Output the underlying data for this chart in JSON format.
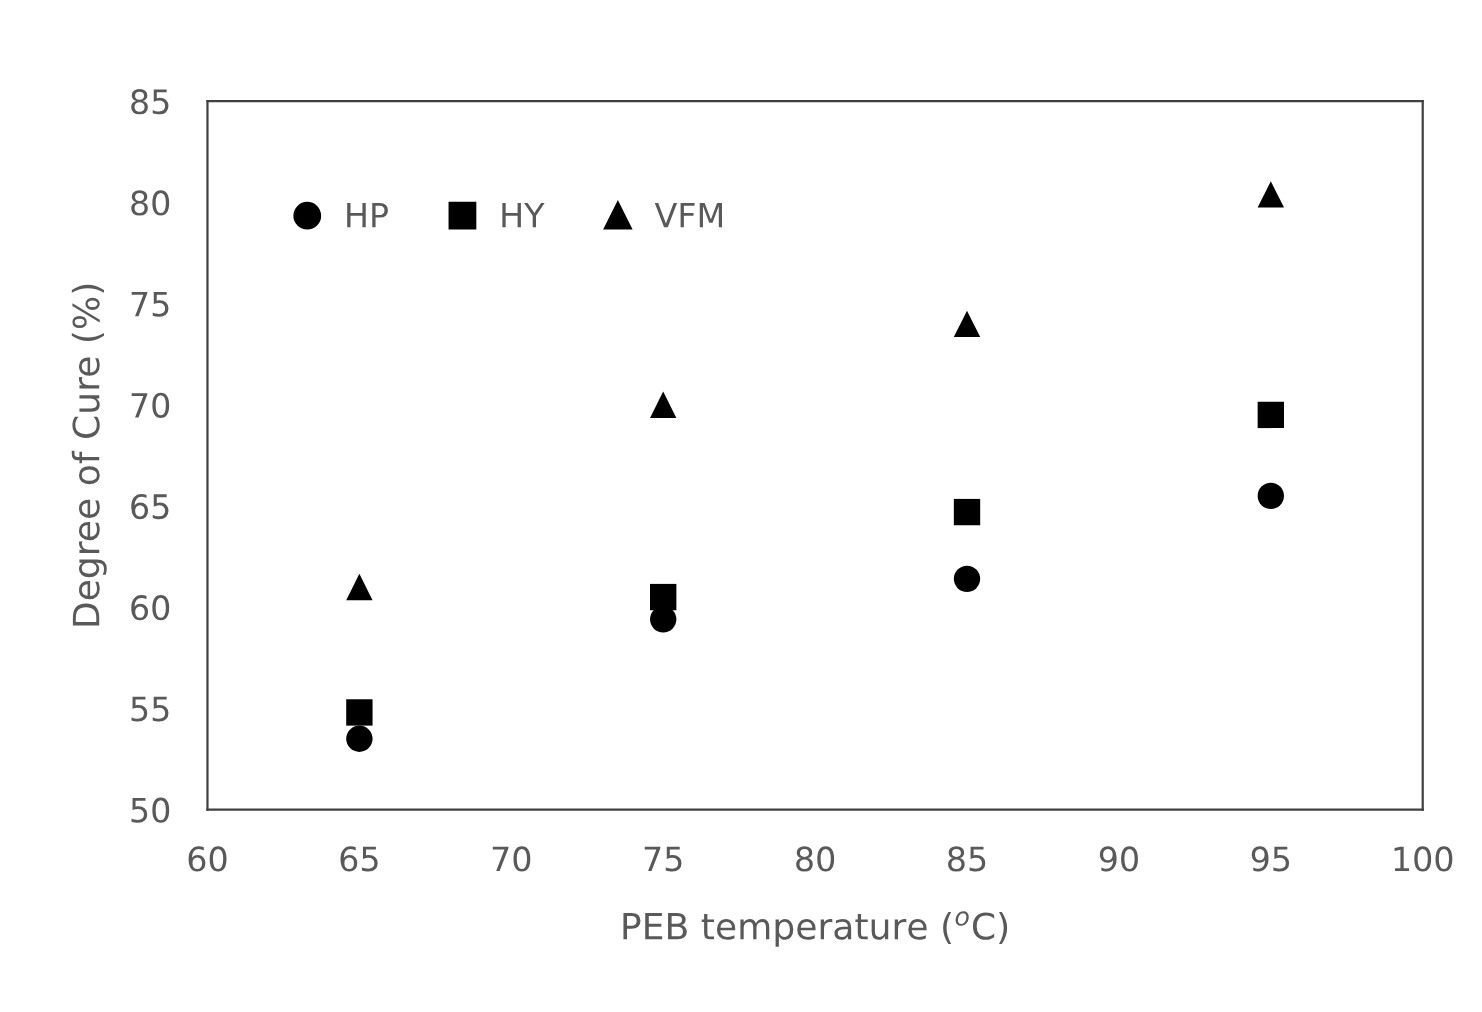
{
  "chart_data": {
    "type": "scatter",
    "xlabel": "PEB temperature ($^{o}$C)",
    "ylabel": "Degree of Cure (%)",
    "x": [
      65,
      75,
      85,
      95
    ],
    "series": [
      {
        "name": "HP",
        "color": "#000000",
        "marker": "circle",
        "values": [
          53.5,
          59.4,
          61.4,
          65.5
        ]
      },
      {
        "name": "HY",
        "color": "#000000",
        "marker": "square",
        "values": [
          54.8,
          60.5,
          64.7,
          69.5
        ]
      },
      {
        "name": "VFM",
        "color": "#000000",
        "marker": "triangle",
        "values": [
          61,
          70,
          74,
          80.4
        ]
      }
    ],
    "xlim": [
      60,
      100
    ],
    "xticks": [
      60,
      65,
      70,
      75,
      80,
      85,
      90,
      95,
      100
    ],
    "ylim": [
      50,
      85
    ],
    "yticks": [
      50,
      55,
      60,
      65,
      70,
      75,
      80,
      85
    ],
    "grid": false,
    "legend": "top left"
  }
}
